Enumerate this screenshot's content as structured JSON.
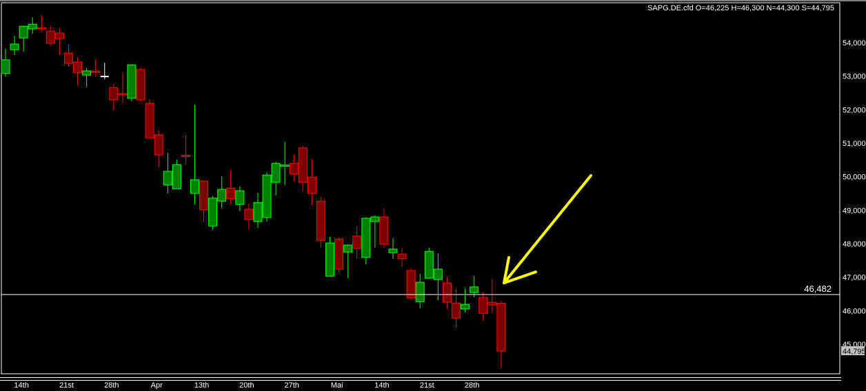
{
  "chart_data": {
    "type": "candlestick",
    "title": "SAPG.DE.cfd O=46,225 H=46,300 N=44,300 S=44,795",
    "ylim": [
      44.3,
      54.85
    ],
    "y_ticks": [
      "54,000",
      "53,000",
      "52,000",
      "51,000",
      "50,000",
      "49,000",
      "48,000",
      "47,000",
      "46,000",
      "45,000"
    ],
    "y_tick_values": [
      54,
      53,
      52,
      51,
      50,
      49,
      48,
      47,
      46,
      45
    ],
    "x_tick_labels": [
      "14th",
      "21st",
      "28th",
      "Apr",
      "13th",
      "20th",
      "27th",
      "Mai",
      "14th",
      "21st",
      "28th"
    ],
    "x_tick_candle_index": [
      2,
      7,
      12,
      17,
      22,
      27,
      32,
      37,
      42,
      47,
      52
    ],
    "horizontal_line": {
      "value": 46.482,
      "label": "46,482"
    },
    "last_price_label": "44,795",
    "grid": false,
    "colors": {
      "up": "#008000",
      "up_border": "#00ff00",
      "down": "#800000",
      "down_border": "#ff0000",
      "doji_neutral": "#ffffff",
      "arrow": "#ffff00",
      "background": "#000000"
    },
    "annotation": "yellow-arrow pointing at last candles",
    "candles": [
      [
        53.08,
        53.82,
        52.99,
        53.49
      ],
      [
        53.79,
        54.21,
        53.63,
        53.96
      ],
      [
        54.14,
        54.51,
        53.73,
        54.49
      ],
      [
        54.41,
        54.76,
        54.27,
        54.55
      ],
      [
        54.45,
        54.82,
        54.31,
        54.43
      ],
      [
        54.35,
        54.51,
        53.9,
        53.98
      ],
      [
        54.29,
        54.41,
        53.65,
        54.12
      ],
      [
        53.69,
        53.96,
        53.28,
        53.38
      ],
      [
        53.42,
        53.57,
        52.71,
        53.1
      ],
      [
        53.03,
        53.24,
        52.69,
        53.16
      ],
      [
        53.15,
        53.51,
        52.99,
        53.13
      ],
      [
        52.99,
        53.4,
        52.91,
        52.99
      ],
      [
        52.66,
        52.77,
        51.97,
        52.29
      ],
      [
        52.48,
        53.1,
        52.21,
        52.44
      ],
      [
        52.34,
        53.34,
        52.25,
        53.34
      ],
      [
        53.2,
        53.26,
        52.23,
        52.29
      ],
      [
        52.19,
        52.32,
        51.16,
        51.16
      ],
      [
        51.25,
        51.39,
        50.28,
        50.65
      ],
      [
        49.75,
        50.71,
        49.5,
        50.16
      ],
      [
        49.64,
        50.51,
        49.64,
        50.36
      ],
      [
        50.64,
        51.25,
        50.4,
        50.62
      ],
      [
        49.5,
        52.15,
        49.17,
        49.91
      ],
      [
        49.87,
        49.89,
        48.64,
        49.01
      ],
      [
        48.53,
        49.42,
        48.43,
        49.36
      ],
      [
        49.27,
        50.01,
        49.07,
        49.62
      ],
      [
        49.66,
        50.22,
        49.15,
        49.34
      ],
      [
        49.17,
        49.71,
        48.97,
        49.58
      ],
      [
        49.03,
        49.19,
        48.43,
        48.72
      ],
      [
        48.66,
        49.52,
        48.47,
        49.23
      ],
      [
        48.78,
        50.12,
        48.66,
        50.05
      ],
      [
        49.83,
        50.45,
        49.44,
        50.4
      ],
      [
        50.33,
        51.04,
        49.75,
        50.35
      ],
      [
        50.4,
        50.65,
        49.85,
        50.08
      ],
      [
        50.86,
        50.92,
        49.56,
        49.83
      ],
      [
        49.99,
        50.53,
        49.13,
        49.5
      ],
      [
        49.27,
        49.4,
        47.88,
        48.1
      ],
      [
        47.03,
        48.21,
        47.03,
        48.02
      ],
      [
        48.14,
        48.19,
        47.14,
        47.24
      ],
      [
        47.75,
        47.98,
        46.97,
        47.96
      ],
      [
        48.23,
        48.53,
        47.55,
        47.86
      ],
      [
        47.59,
        48.8,
        47.38,
        48.76
      ],
      [
        48.66,
        48.84,
        47.88,
        48.8
      ],
      [
        48.8,
        49.05,
        47.88,
        47.98
      ],
      [
        47.73,
        48.16,
        47.55,
        47.84
      ],
      [
        47.69,
        47.88,
        47.3,
        47.55
      ],
      [
        47.2,
        47.28,
        46.32,
        46.38
      ],
      [
        46.27,
        47.1,
        46.07,
        46.85
      ],
      [
        46.97,
        47.88,
        46.97,
        47.77
      ],
      [
        46.93,
        47.71,
        46.32,
        47.24
      ],
      [
        46.83,
        47.01,
        46.05,
        46.25
      ],
      [
        46.23,
        46.66,
        45.51,
        45.78
      ],
      [
        46.05,
        46.66,
        45.95,
        46.19
      ],
      [
        46.54,
        47.03,
        46.4,
        46.71
      ],
      [
        46.4,
        46.56,
        45.7,
        45.92
      ],
      [
        46.25,
        46.95,
        45.95,
        46.17
      ],
      [
        46.225,
        46.3,
        44.3,
        44.795
      ]
    ],
    "candle_format": [
      "open",
      "high",
      "low",
      "close"
    ]
  }
}
